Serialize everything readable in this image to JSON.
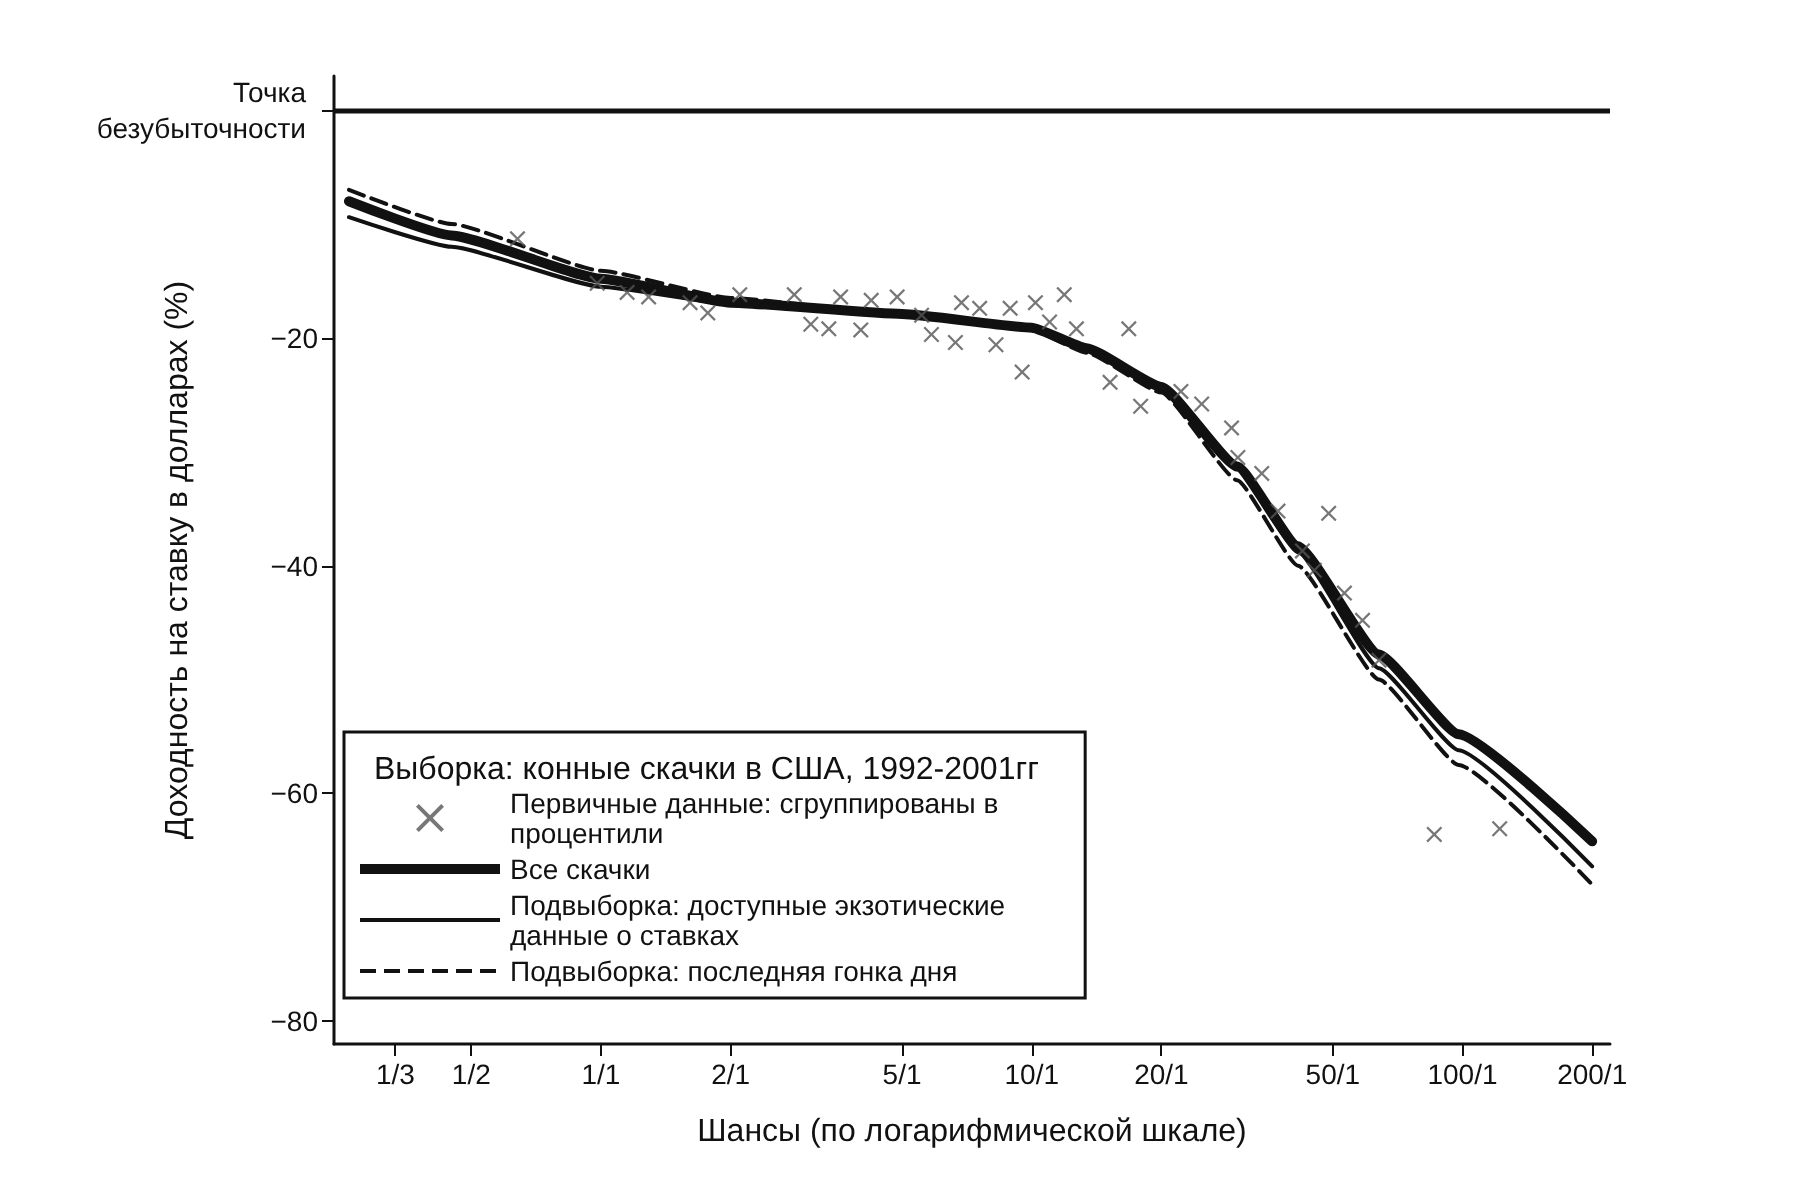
{
  "chart_data": {
    "type": "line",
    "xlabel": "Шансы (по логарифмической шкале)",
    "ylabel": "Доходность на ставку в долларах (%)",
    "legend_title": "Выборка: конные скачки в США, 1992-2001гг",
    "log": "x",
    "grid": false,
    "legend": "bottom left",
    "xlim": [
      0.24,
      220
    ],
    "xticks": [
      {
        "value": 0.3333,
        "label": "1/3"
      },
      {
        "value": 0.5,
        "label": "1/2"
      },
      {
        "value": 1,
        "label": "1/1"
      },
      {
        "value": 2,
        "label": "2/1"
      },
      {
        "value": 5,
        "label": "5/1"
      },
      {
        "value": 10,
        "label": "10/1"
      },
      {
        "value": 20,
        "label": "20/1"
      },
      {
        "value": 50,
        "label": "50/1"
      },
      {
        "value": 100,
        "label": "100/1"
      },
      {
        "value": 200,
        "label": "200/1"
      }
    ],
    "ylim": [
      -82,
      3
    ],
    "yticks": [
      {
        "value": 0,
        "label": null
      },
      -20,
      -40,
      -60,
      -80
    ],
    "ref_lines": [
      {
        "axis": "y",
        "value": 0,
        "label": "Точка безубыточности",
        "color": "#111111"
      }
    ],
    "series": [
      {
        "name": "Первичные данные: сгруппированы в процентили",
        "type": "scatter",
        "marker": "cross",
        "color": "#555555",
        "x": [
          0.64,
          0.98,
          1.15,
          1.29,
          1.61,
          1.77,
          2.1,
          2.81,
          3.07,
          3.38,
          3.6,
          4.01,
          4.24,
          4.87,
          5.55,
          5.85,
          6.65,
          6.87,
          7.57,
          8.26,
          8.91,
          9.5,
          10.2,
          11,
          11.9,
          12.7,
          15.2,
          16.8,
          17.9,
          22.2,
          24.8,
          29.1,
          30.1,
          34.2,
          37.3,
          48.9,
          42.5,
          45.3,
          53.2,
          58.6,
          64,
          86,
          122
        ],
        "values": [
          -11.3,
          -15.2,
          -16,
          -16.4,
          -16.9,
          -17.8,
          -16.2,
          -16.2,
          -18.8,
          -19.2,
          -16.4,
          -19.3,
          -16.7,
          -16.4,
          -18,
          -19.7,
          -20.4,
          -16.9,
          -17.4,
          -20.6,
          -17.4,
          -23,
          -16.9,
          -18.6,
          -16.2,
          -19.2,
          -23.9,
          -19.2,
          -26,
          -24.7,
          -25.8,
          -27.9,
          -30.5,
          -31.9,
          -35.2,
          -35.4,
          -38.7,
          -40.4,
          -42.4,
          -44.8,
          -48.3,
          -63.6,
          -63.1
        ]
      },
      {
        "name": "Все скачки",
        "marker": "none",
        "line_style": "solid",
        "color": "#111111",
        "x": [
          0.26,
          0.45,
          1,
          2,
          5,
          10,
          13.4,
          20,
          30,
          41.5,
          64,
          98,
          200
        ],
        "values": [
          -8,
          -11,
          -14.8,
          -16.9,
          -17.9,
          -19.1,
          -20.9,
          -24.3,
          -31.3,
          -38.3,
          -47.8,
          -54.8,
          -64.2
        ]
      },
      {
        "name": "Подвыборка: доступные экзотические данные о ставках",
        "marker": "none",
        "line_style": "solid",
        "color": "#111111",
        "x": [
          0.26,
          0.45,
          1,
          2,
          5,
          10,
          13.4,
          20,
          30,
          41.5,
          64,
          98,
          200
        ],
        "values": [
          -9.4,
          -12,
          -15.5,
          -17,
          -18,
          -19.2,
          -21,
          -24.5,
          -31.5,
          -38.8,
          -49,
          -56.2,
          -66.4
        ]
      },
      {
        "name": "Подвыборка: последняя гонка дня",
        "marker": "none",
        "line_style": "dashed",
        "color": "#111111",
        "x": [
          0.26,
          0.45,
          1,
          2,
          5,
          10,
          13.4,
          20,
          30,
          41.5,
          64,
          98,
          200
        ],
        "values": [
          -7,
          -10,
          -14.1,
          -16.5,
          -17.9,
          -19.3,
          -21.3,
          -24.8,
          -32.5,
          -40,
          -50,
          -57.5,
          -68
        ]
      }
    ]
  }
}
